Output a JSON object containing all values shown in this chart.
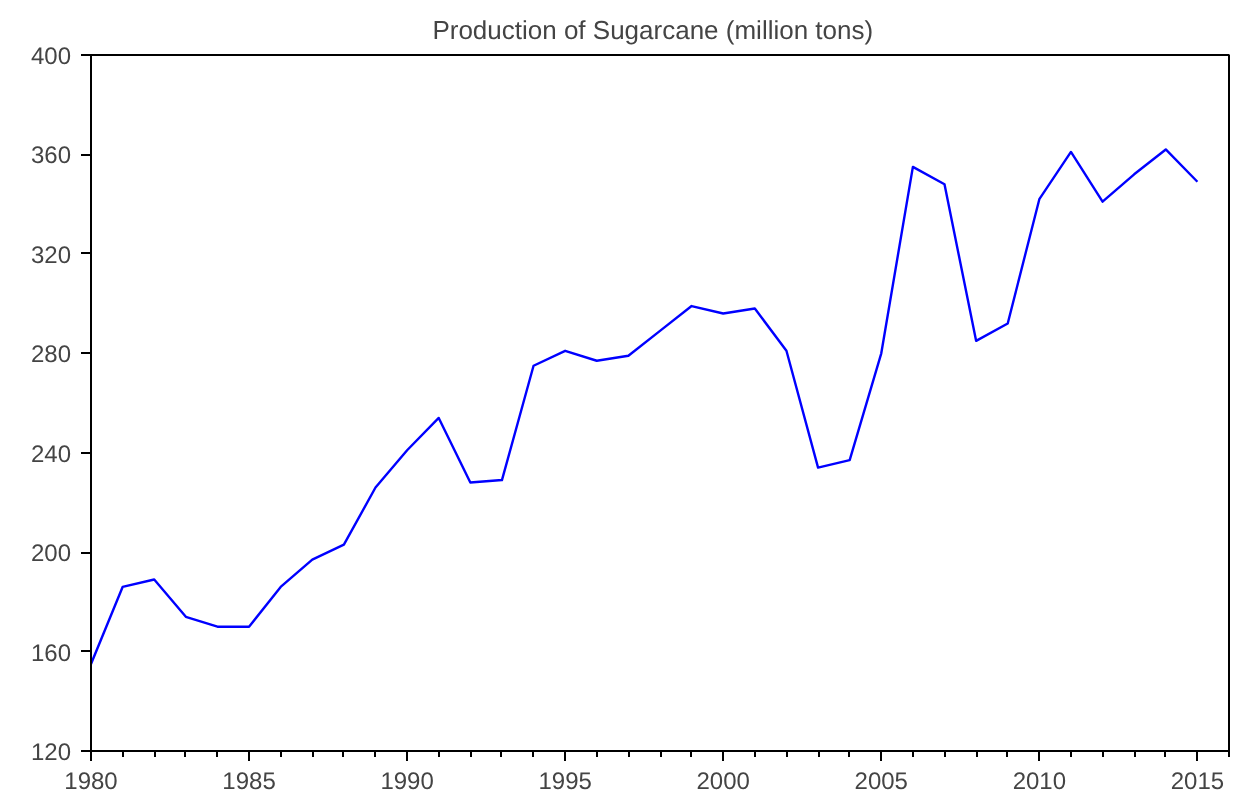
{
  "chart_data": {
    "type": "line",
    "title": "Production of Sugarcane   (million tons)",
    "x": [
      1980,
      1981,
      1982,
      1983,
      1984,
      1985,
      1986,
      1987,
      1988,
      1989,
      1990,
      1991,
      1992,
      1993,
      1994,
      1995,
      1996,
      1997,
      1998,
      1999,
      2000,
      2001,
      2002,
      2003,
      2004,
      2005,
      2006,
      2007,
      2008,
      2009,
      2010,
      2011,
      2012,
      2013,
      2014,
      2015
    ],
    "series": [
      {
        "color": "#0000ff",
        "values": [
          155,
          186,
          189,
          174,
          170,
          170,
          186,
          197,
          203,
          226,
          241,
          254,
          228,
          229,
          275,
          281,
          277,
          279,
          289,
          299,
          296,
          298,
          281,
          234,
          237,
          280,
          355,
          348,
          285,
          292,
          342,
          361,
          341,
          352,
          362,
          349
        ]
      }
    ],
    "xlim": [
      1980,
      2016
    ],
    "xticks": [
      1980,
      1985,
      1990,
      1995,
      2000,
      2005,
      2010,
      2015
    ],
    "ylim": [
      120,
      400
    ],
    "yticks": [
      120,
      160,
      200,
      240,
      280,
      320,
      360,
      400
    ],
    "grid": false,
    "line_style": "solid"
  }
}
